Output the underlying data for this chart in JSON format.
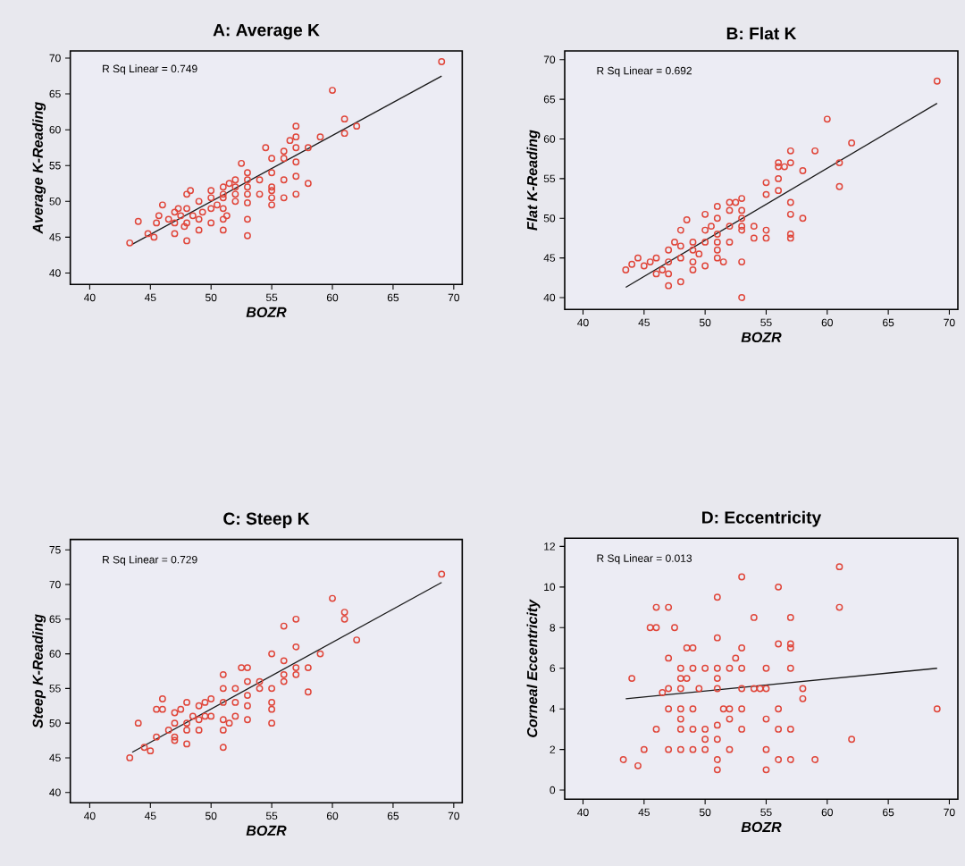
{
  "chart_data": [
    {
      "type": "scatter",
      "title": "A: Average K",
      "xlabel": "BOZR",
      "ylabel": "Average K-Reading",
      "annotations": [
        "R Sq Linear = 0.749"
      ],
      "xlim": [
        38.4,
        70.7
      ],
      "ylim": [
        38.4,
        71
      ],
      "xticks": [
        40,
        45,
        50,
        55,
        60,
        65,
        70
      ],
      "yticks": [
        40,
        45,
        50,
        55,
        60,
        65,
        70
      ],
      "series": [
        {
          "marker": "circle",
          "color": "#e0463a",
          "x": [
            43.3,
            44,
            44.8,
            45.3,
            45.5,
            45.7,
            46,
            46.5,
            47,
            47,
            47,
            47.3,
            47.5,
            47.8,
            48,
            48,
            48,
            48,
            48.3,
            48.5,
            49,
            49,
            49,
            49.3,
            50,
            50,
            50,
            50,
            50.5,
            51,
            51,
            51,
            51,
            51,
            51,
            51.3,
            51.5,
            52,
            52,
            52,
            52,
            52.5,
            53,
            53,
            53,
            53,
            53,
            53,
            53,
            54,
            54,
            54.5,
            55,
            55,
            55,
            55,
            55,
            55,
            56,
            56,
            56,
            56,
            56.5,
            57,
            57,
            57,
            57,
            57,
            57,
            58,
            58,
            59,
            60,
            61,
            61,
            62,
            69
          ],
          "values": [
            44.2,
            47.2,
            45.5,
            45,
            47,
            48,
            49.5,
            47.5,
            48.5,
            47,
            45.5,
            49,
            48,
            46.5,
            51,
            49,
            47,
            44.5,
            51.5,
            48,
            50,
            46,
            47.5,
            48.5,
            50.5,
            49,
            47,
            51.5,
            49.5,
            52,
            51,
            50.5,
            49,
            46,
            47.5,
            48,
            52.5,
            53,
            52,
            51,
            50,
            55.3,
            54,
            53,
            52,
            51,
            49.8,
            47.5,
            45.2,
            51,
            53,
            57.5,
            56,
            54,
            52,
            51.5,
            50.5,
            49.5,
            50.5,
            53,
            56,
            57,
            58.5,
            60.5,
            59,
            57.5,
            55.5,
            53.5,
            51,
            57.5,
            52.5,
            59,
            65.5,
            61.5,
            59.5,
            60.5,
            69.5
          ]
        },
        {
          "type": "line",
          "color": "#1a1a1a",
          "x": [
            43.5,
            69
          ],
          "values": [
            44,
            67.5
          ]
        }
      ]
    },
    {
      "type": "scatter",
      "title": "B: Flat K",
      "xlabel": "BOZR",
      "ylabel": "Flat K-Reading",
      "annotations": [
        "R Sq Linear = 0.692"
      ],
      "xlim": [
        38.5,
        70.7
      ],
      "ylim": [
        38.5,
        71.1
      ],
      "xticks": [
        40,
        45,
        50,
        55,
        60,
        65,
        70
      ],
      "yticks": [
        40,
        45,
        50,
        55,
        60,
        65,
        70
      ],
      "series": [
        {
          "marker": "circle",
          "color": "#e0463a",
          "x": [
            43.5,
            44,
            44.5,
            45,
            45.5,
            46,
            46,
            46.5,
            47,
            47,
            47,
            47,
            47.5,
            48,
            48,
            48,
            48,
            48.5,
            49,
            49,
            49,
            49,
            49.5,
            50,
            50,
            50,
            50,
            50.5,
            51,
            51,
            51,
            51,
            51,
            51,
            51.5,
            52,
            52,
            52,
            52,
            52.5,
            53,
            53,
            53,
            53,
            53,
            53,
            53,
            54,
            54,
            55,
            55,
            55,
            55,
            56,
            56,
            56,
            56,
            56.5,
            57,
            57,
            57,
            57,
            57,
            57,
            58,
            58,
            59,
            60,
            61,
            61,
            62,
            69
          ],
          "values": [
            43.5,
            44.2,
            45,
            44,
            44.5,
            45,
            43,
            43.5,
            46,
            44.5,
            43,
            41.5,
            47,
            48.5,
            46.5,
            45,
            42,
            49.8,
            47,
            46,
            44.5,
            43.5,
            45.5,
            48.5,
            50.5,
            47,
            44,
            49,
            51.5,
            50,
            48,
            47,
            46,
            45,
            44.5,
            52,
            51,
            49,
            47,
            52,
            52.5,
            51,
            50,
            49,
            48.5,
            44.5,
            40,
            49,
            47.5,
            54.5,
            53,
            48.5,
            47.5,
            57,
            56.5,
            55,
            53.5,
            56.5,
            58.5,
            57,
            52,
            50.5,
            48,
            47.5,
            56,
            50,
            58.5,
            62.5,
            57,
            54,
            59.5,
            67.3
          ]
        },
        {
          "type": "line",
          "color": "#1a1a1a",
          "x": [
            43.5,
            69
          ],
          "values": [
            41.3,
            64.5
          ]
        }
      ]
    },
    {
      "type": "scatter",
      "title": "C: Steep K",
      "xlabel": "BOZR",
      "ylabel": "Steep K-Reading",
      "annotations": [
        "R Sq Linear = 0.729"
      ],
      "xlim": [
        38.4,
        70.7
      ],
      "ylim": [
        38.5,
        76.5
      ],
      "xticks": [
        40,
        45,
        50,
        55,
        60,
        65,
        70
      ],
      "yticks": [
        40,
        45,
        50,
        55,
        60,
        65,
        70,
        75
      ],
      "series": [
        {
          "marker": "circle",
          "color": "#e0463a",
          "x": [
            43.3,
            44,
            44.5,
            45,
            45.5,
            45.5,
            46,
            46,
            46.5,
            47,
            47,
            47,
            47,
            47.5,
            48,
            48,
            48,
            48,
            48.5,
            49,
            49,
            49,
            49.5,
            49.5,
            50,
            50,
            51,
            51,
            51,
            51,
            51,
            51,
            51.5,
            52,
            52,
            52,
            52.5,
            53,
            53,
            53,
            53,
            53,
            54,
            54,
            55,
            55,
            55,
            55,
            55,
            56,
            56,
            56,
            56,
            57,
            57,
            57,
            57,
            58,
            58,
            59,
            60,
            61,
            61,
            62,
            69
          ],
          "values": [
            45,
            50,
            46.5,
            46,
            48,
            52,
            53.5,
            52,
            49,
            48,
            50,
            51.5,
            47.5,
            52,
            53,
            50,
            49,
            47,
            51,
            52.5,
            50.5,
            49,
            51,
            53,
            51,
            53.5,
            55,
            53,
            50.5,
            46.5,
            49,
            57,
            50,
            55,
            53,
            51,
            58,
            58,
            56,
            54,
            52.5,
            50.5,
            55,
            56,
            55,
            53,
            50,
            52,
            60,
            59,
            57,
            64,
            56,
            61,
            58,
            57,
            65,
            58,
            54.5,
            60,
            68,
            66,
            65,
            62,
            71.5
          ]
        },
        {
          "type": "line",
          "color": "#1a1a1a",
          "x": [
            43.5,
            69
          ],
          "values": [
            45.8,
            70.3
          ]
        }
      ]
    },
    {
      "type": "scatter",
      "title": "D: Eccentricity",
      "xlabel": "BOZR",
      "ylabel": "Corneal Eccentricity",
      "annotations": [
        "R Sq Linear = 0.013"
      ],
      "xlim": [
        38.5,
        70.7
      ],
      "ylim": [
        -0.45,
        12.4
      ],
      "xticks": [
        40,
        45,
        50,
        55,
        60,
        65,
        70
      ],
      "yticks": [
        0,
        2,
        4,
        6,
        8,
        10,
        12
      ],
      "series": [
        {
          "marker": "circle",
          "color": "#e0463a",
          "x": [
            43.3,
            44,
            44.5,
            45,
            45.5,
            46,
            46,
            46,
            46.5,
            47,
            47,
            47,
            47,
            47,
            47.5,
            48,
            48,
            48,
            48,
            48,
            48,
            48,
            48.5,
            48.5,
            49,
            49,
            49,
            49,
            49,
            49.5,
            50,
            50,
            50,
            50,
            51,
            51,
            51,
            51,
            51,
            51,
            51,
            51,
            51,
            51.5,
            52,
            52,
            52,
            52,
            52.5,
            53,
            53,
            53,
            53,
            53,
            53,
            54,
            54,
            54.5,
            55,
            55,
            55,
            55,
            55,
            56,
            56,
            56,
            56,
            56,
            57,
            57,
            57,
            57,
            57,
            57,
            58,
            58,
            59,
            61,
            61,
            62,
            69
          ],
          "values": [
            1.5,
            5.5,
            1.2,
            2,
            8,
            8,
            9,
            3,
            4.8,
            9,
            6.5,
            5,
            4,
            2,
            8,
            6,
            5.5,
            5,
            4,
            3.5,
            3,
            2,
            7,
            5.5,
            7,
            6,
            4,
            3,
            2,
            5,
            6,
            3,
            2.5,
            2,
            9.5,
            7.5,
            6,
            5.5,
            5,
            3.2,
            2.5,
            1.5,
            1,
            4,
            6,
            4,
            3.5,
            2,
            6.5,
            10.5,
            7,
            6,
            5,
            4,
            3,
            8.5,
            5,
            5,
            6,
            5,
            3.5,
            2,
            1,
            10,
            7.2,
            4,
            3,
            1.5,
            8.5,
            7.2,
            7,
            6,
            3,
            1.5,
            5,
            4.5,
            1.5,
            11,
            9,
            2.5,
            4
          ]
        },
        {
          "type": "line",
          "color": "#1a1a1a",
          "x": [
            43.5,
            69
          ],
          "values": [
            4.5,
            6
          ]
        }
      ]
    }
  ]
}
